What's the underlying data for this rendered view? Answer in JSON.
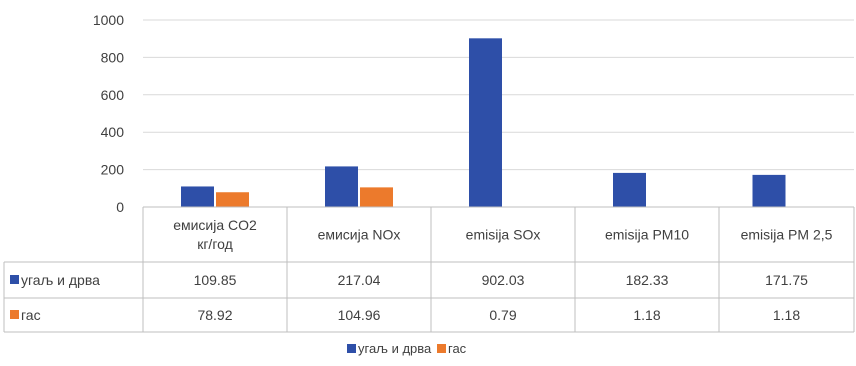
{
  "chart_data": {
    "type": "bar",
    "title": "",
    "xlabel": "",
    "ylabel": "",
    "ylim": [
      0,
      1000
    ],
    "yticks": [
      0,
      200,
      400,
      600,
      800,
      1000
    ],
    "grid": true,
    "legend_position": "bottom",
    "data_table": true,
    "categories": [
      [
        "емисија CO2",
        "кг/год"
      ],
      [
        "емисија NOx"
      ],
      [
        "emisija SOx"
      ],
      [
        "emisija PM10"
      ],
      [
        "emisija PM 2,5"
      ]
    ],
    "series": [
      {
        "name": "угаљ и дрва",
        "color": "#2e4fa8",
        "values": [
          109.85,
          217.04,
          902.03,
          182.33,
          171.75
        ],
        "labels": [
          "109.85",
          "217.04",
          "902.03",
          "182.33",
          "171.75"
        ]
      },
      {
        "name": "гас",
        "color": "#ec7a2c",
        "values": [
          78.92,
          104.96,
          0.79,
          1.18,
          1.18
        ],
        "labels": [
          "78.92",
          "104.96",
          "0.79",
          "1.18",
          "1.18"
        ]
      }
    ]
  }
}
